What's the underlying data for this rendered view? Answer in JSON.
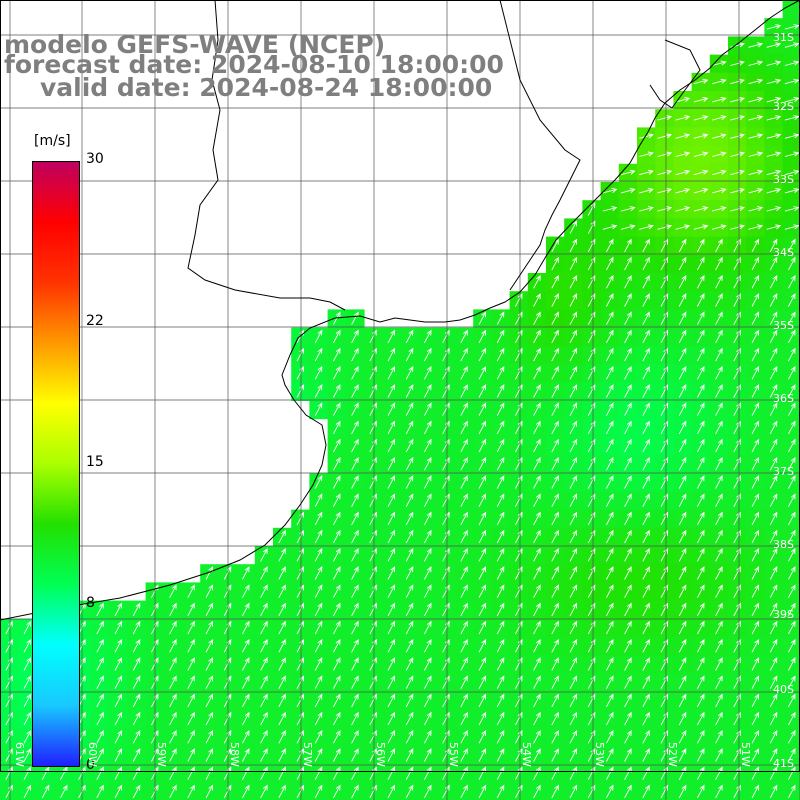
{
  "title": {
    "line1": "modelo GEFS-WAVE (NCEP)",
    "line2": "forecast date: 2024-08-10 18:00:00",
    "line3": "valid date: 2024-08-24 18:00:00"
  },
  "colorbar": {
    "unit": "[m/s]",
    "min": 0,
    "max": 30,
    "ticks": [
      {
        "value": 30,
        "label": "30"
      },
      {
        "value": 22,
        "label": "22"
      },
      {
        "value": 15,
        "label": "15"
      },
      {
        "value": 8,
        "label": "8"
      },
      {
        "value": 0,
        "label": "0"
      }
    ],
    "colors": [
      "#1f1fff",
      "#18c8ff",
      "#00ffff",
      "#00ff55",
      "#22e000",
      "#aaff00",
      "#ffff00",
      "#ff9900",
      "#ff3300",
      "#ff0000",
      "#c00060"
    ]
  },
  "map": {
    "lat_labels": [
      "31S",
      "32S",
      "33S",
      "34S",
      "35S",
      "36S",
      "37S",
      "38S",
      "39S",
      "40S",
      "41S"
    ],
    "lon_labels": [
      "61W",
      "60W",
      "59W",
      "58W",
      "57W",
      "56W",
      "55W",
      "54W",
      "53W",
      "52W",
      "51W"
    ],
    "land_color": "#ffffff",
    "grid_color": "#555555",
    "arrow_color": "#ffffff"
  }
}
